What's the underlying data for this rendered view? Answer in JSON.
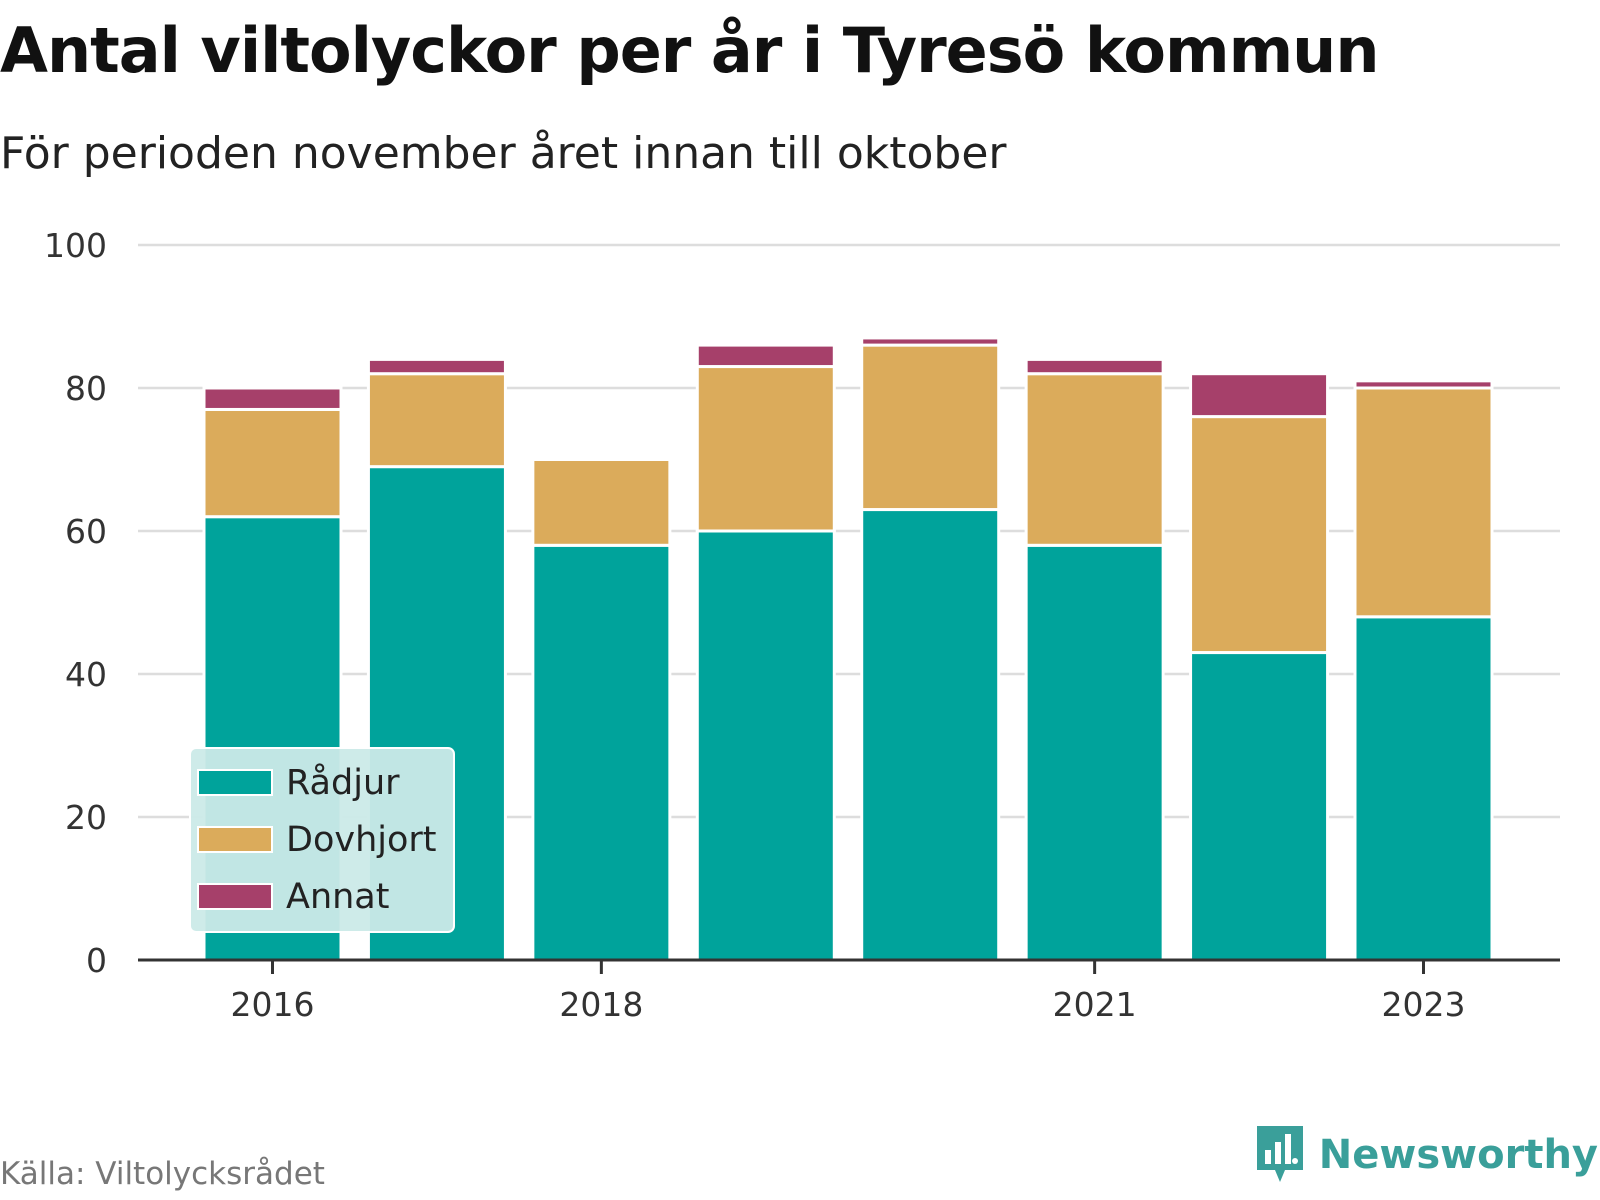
{
  "title": "Antal viltolyckor per år i Tyresö kommun",
  "subtitle": "För perioden november året innan till oktober",
  "source": "Källa: Viltolycksrådet",
  "brand": {
    "name": "Newsworthy",
    "icon": "newsworthy-logo-icon",
    "color": "#3a9f9a"
  },
  "colors": {
    "Rådjur": "#00a39b",
    "Dovhjort": "#dbab5b",
    "Annat": "#a6406a",
    "legend_bg": "#cbeae8"
  },
  "chart_data": {
    "type": "bar",
    "stacked": true,
    "categories": [
      "2016",
      "2017",
      "2018",
      "2019",
      "2020",
      "2021",
      "2022",
      "2023"
    ],
    "x_tick_labels": [
      "2016",
      "",
      "2018",
      "",
      "",
      "2021",
      "",
      "2023"
    ],
    "series": [
      {
        "name": "Rådjur",
        "values": [
          62,
          69,
          58,
          60,
          63,
          58,
          43,
          48
        ]
      },
      {
        "name": "Dovhjort",
        "values": [
          15,
          13,
          12,
          23,
          23,
          24,
          33,
          32
        ]
      },
      {
        "name": "Annat",
        "values": [
          3,
          2,
          0,
          3,
          1,
          2,
          6,
          1
        ]
      }
    ],
    "ylim": [
      0,
      100
    ],
    "yticks": [
      0,
      20,
      40,
      60,
      80,
      100
    ],
    "grid": true,
    "legend_position": "bottom-left",
    "xlabel": "",
    "ylabel": ""
  }
}
